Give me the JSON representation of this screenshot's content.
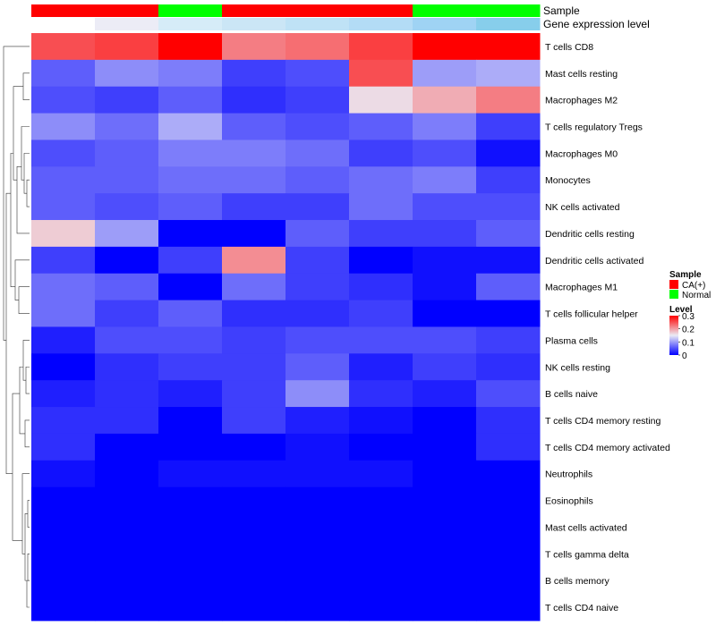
{
  "chart_data": {
    "type": "heatmap",
    "annotation_labels": [
      "Sample",
      "Gene expression level"
    ],
    "samples": [
      "CA(+)",
      "CA(+)",
      "Normal",
      "CA(+)",
      "CA(+)",
      "CA(+)",
      "Normal",
      "Normal"
    ],
    "sample_colors": {
      "CA(+)": "#ff0000",
      "Normal": "#00ff00"
    },
    "gene_expression_colors": [
      "#ffffff",
      "#ececf6",
      "#d6ecf8",
      "#cbe6f6",
      "#bfe2f6",
      "#b3dcf6",
      "#9fd3f4",
      "#87ceeb"
    ],
    "rows": [
      "T cells CD8",
      "Mast cells resting",
      "Macrophages M2",
      "T cells regulatory  Tregs",
      "Macrophages M0",
      "Monocytes",
      "NK cells activated",
      "Dendritic cells resting",
      "Dendritic cells activated",
      "Macrophages M1",
      "T cells follicular helper",
      "Plasma cells",
      "NK cells resting",
      "B cells naive",
      "T cells CD4 memory resting",
      "T cells CD4 memory activated",
      "Neutrophils",
      "Eosinophils",
      "Mast cells activated",
      "T cells gamma delta",
      "B cells memory",
      "T cells CD4 naive"
    ],
    "values": [
      [
        0.25,
        0.26,
        0.3,
        0.22,
        0.23,
        0.26,
        0.3,
        0.3
      ],
      [
        0.06,
        0.09,
        0.08,
        0.04,
        0.05,
        0.25,
        0.1,
        0.11
      ],
      [
        0.05,
        0.04,
        0.06,
        0.03,
        0.04,
        0.16,
        0.19,
        0.22
      ],
      [
        0.09,
        0.07,
        0.11,
        0.06,
        0.05,
        0.06,
        0.08,
        0.04
      ],
      [
        0.05,
        0.06,
        0.08,
        0.08,
        0.07,
        0.04,
        0.05,
        0.01
      ],
      [
        0.06,
        0.06,
        0.07,
        0.07,
        0.06,
        0.07,
        0.08,
        0.04
      ],
      [
        0.06,
        0.05,
        0.06,
        0.04,
        0.04,
        0.07,
        0.05,
        0.05
      ],
      [
        0.17,
        0.1,
        0.0,
        0.0,
        0.06,
        0.04,
        0.04,
        0.06
      ],
      [
        0.04,
        0.0,
        0.04,
        0.21,
        0.04,
        0.0,
        0.01,
        0.01
      ],
      [
        0.07,
        0.06,
        0.0,
        0.07,
        0.04,
        0.03,
        0.01,
        0.06
      ],
      [
        0.07,
        0.04,
        0.06,
        0.03,
        0.03,
        0.04,
        0.0,
        0.0
      ],
      [
        0.02,
        0.05,
        0.05,
        0.04,
        0.05,
        0.05,
        0.05,
        0.04
      ],
      [
        0.0,
        0.03,
        0.04,
        0.04,
        0.06,
        0.02,
        0.04,
        0.03
      ],
      [
        0.02,
        0.03,
        0.02,
        0.04,
        0.09,
        0.03,
        0.02,
        0.05
      ],
      [
        0.03,
        0.03,
        0.0,
        0.04,
        0.02,
        0.01,
        0.0,
        0.03
      ],
      [
        0.03,
        0.0,
        0.0,
        0.0,
        0.01,
        0.0,
        0.0,
        0.03
      ],
      [
        0.01,
        0.0,
        0.01,
        0.01,
        0.01,
        0.01,
        0.0,
        0.0
      ],
      [
        0.0,
        0.0,
        0.0,
        0.0,
        0.0,
        0.0,
        0.0,
        0.0
      ],
      [
        0.0,
        0.0,
        0.0,
        0.0,
        0.0,
        0.0,
        0.0,
        0.0
      ],
      [
        0.0,
        0.0,
        0.0,
        0.0,
        0.0,
        0.0,
        0.0,
        0.0
      ],
      [
        0.0,
        0.0,
        0.0,
        0.0,
        0.0,
        0.0,
        0.0,
        0.0
      ],
      [
        0.0,
        0.0,
        0.0,
        0.0,
        0.0,
        0.0,
        0.0,
        0.0
      ]
    ],
    "color_scale": {
      "low": "#0000ff",
      "mid": "#ebebf5",
      "high": "#ff0000",
      "min": 0,
      "mid_value": 0.15,
      "max": 0.3
    },
    "legend": {
      "placement": "right",
      "sample_title": "Sample",
      "sample_entries": [
        "CA(+)",
        "Normal"
      ],
      "level_title": "Level",
      "level_ticks": [
        "0.3",
        "0.2",
        "0.1",
        "0"
      ]
    },
    "dendrogram": "rows"
  }
}
